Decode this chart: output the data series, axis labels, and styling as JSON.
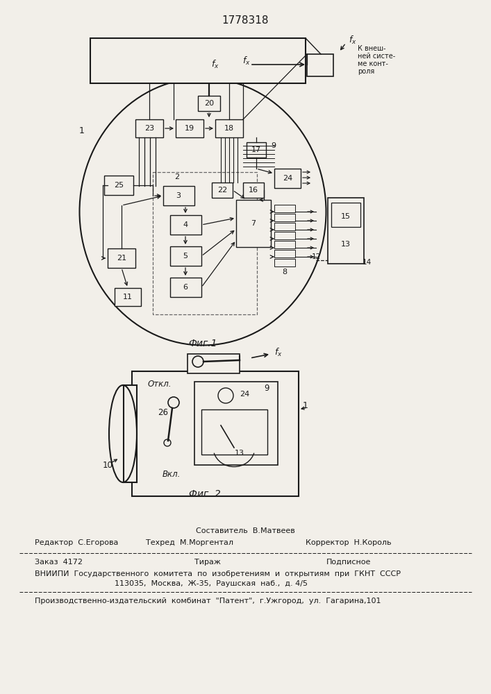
{
  "title": "1778318",
  "fig1_label": "Фиг.1",
  "fig2_label": "Фиг. 2",
  "bg_color": "#f2efe9",
  "line_color": "#1a1a1a",
  "footer_line1": "Составитель  В.Матвеев",
  "footer_line2a": "Редактор  С.Егорова",
  "footer_line2b": "Техред  М.Моргентал",
  "footer_line2c": "Корректор  Н.Король",
  "footer_line3a": "Заказ  4172",
  "footer_line3b": "Тираж",
  "footer_line3c": "Подписное",
  "footer_line4": "ВНИИПИ  Государственного  комитета  по  изобретениям  и  открытиям  при  ГКНТ  СССР",
  "footer_line5": "113035,  Москва,  Ж-35,  Раушская  наб.,  д. 4/5",
  "footer_line6": "Производственно-издательский  комбинат  \"Патент\",  г.Ужгород,  ул.  Гагарина,101",
  "kontrol_text": "К внеш-\nней систе-\nме конт-\nроля"
}
